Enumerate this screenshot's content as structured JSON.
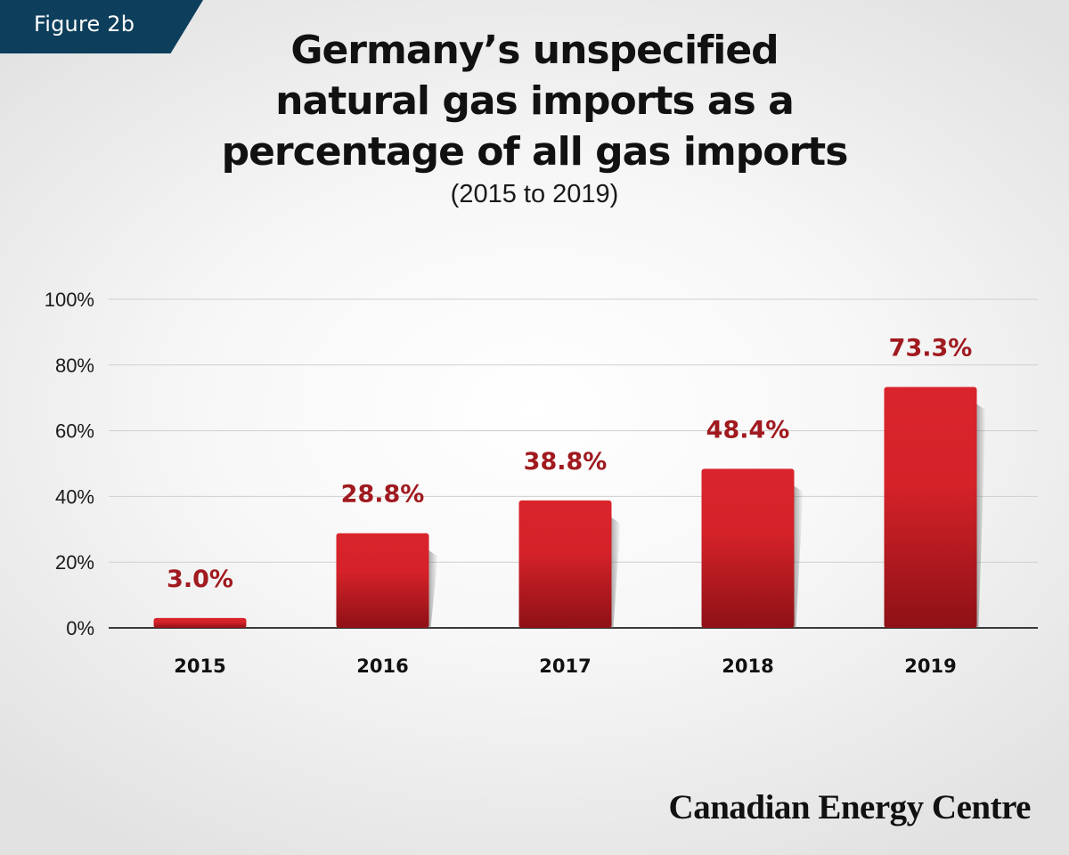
{
  "figure_label": "Figure 2b",
  "brand": "Canadian Energy Centre",
  "colors": {
    "bar_top": "#d9242c",
    "bar_bottom": "#8e1116",
    "value_label": "#a01a1f",
    "figure_tag_bg": "#0d3e5c"
  },
  "chart_data": {
    "type": "bar",
    "title": "Germany’s unspecified natural gas imports as a percentage of all gas imports",
    "title_lines": [
      "Germany’s unspecified",
      "natural gas imports as a",
      "percentage of all gas imports"
    ],
    "subtitle": "(2015 to 2019)",
    "xlabel": "",
    "ylabel": "",
    "categories": [
      "2015",
      "2016",
      "2017",
      "2018",
      "2019"
    ],
    "values": [
      3.0,
      28.8,
      38.8,
      48.4,
      73.3
    ],
    "value_labels": [
      "3.0%",
      "28.8%",
      "38.8%",
      "48.4%",
      "73.3%"
    ],
    "ylim": [
      0,
      100
    ],
    "yticks": [
      0,
      20,
      40,
      60,
      80,
      100
    ],
    "ytick_labels": [
      "0%",
      "20%",
      "40%",
      "60%",
      "80%",
      "100%"
    ],
    "grid": true,
    "legend": "none"
  }
}
